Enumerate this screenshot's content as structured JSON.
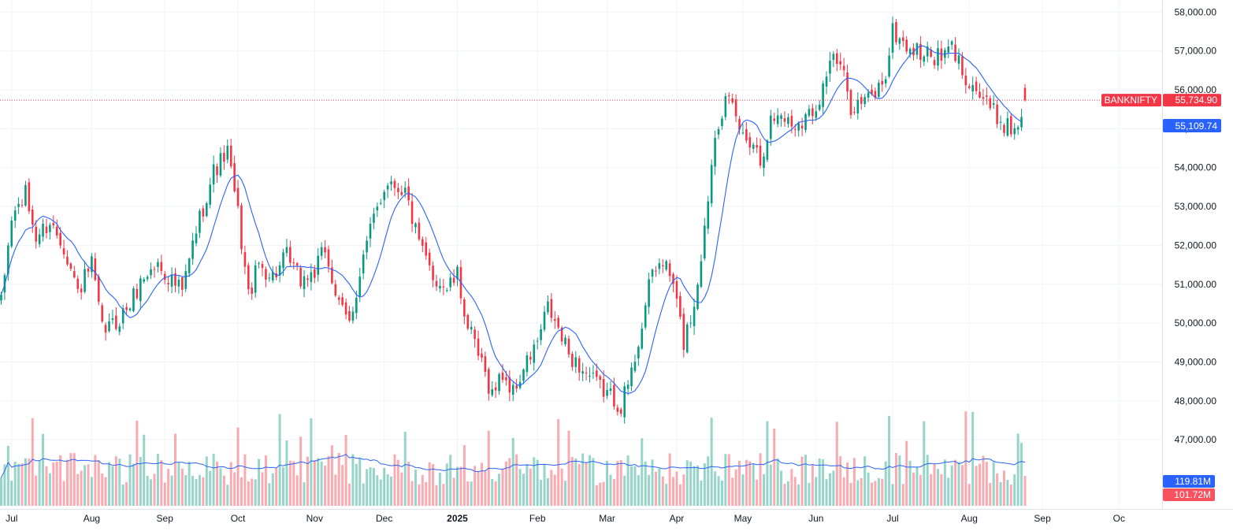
{
  "chart_data": {
    "type": "candlestick",
    "symbol": "BANKNIFTY",
    "last_price": "55,734.90",
    "ma_value": "55,109.74",
    "volume_ma_value": "119.81M",
    "volume_value": "101.72M",
    "ylim": [
      47600,
      58400
    ],
    "y_ticks": [
      {
        "v": 58000,
        "label": "58,000.00"
      },
      {
        "v": 57000,
        "label": "57,000.00"
      },
      {
        "v": 56000,
        "label": "56,000.00"
      },
      {
        "v": 55000,
        "label": "55,000.00"
      },
      {
        "v": 54000,
        "label": "54,000.00"
      },
      {
        "v": 53000,
        "label": "53,000.00"
      },
      {
        "v": 52000,
        "label": "52,000.00"
      },
      {
        "v": 51000,
        "label": "51,000.00"
      },
      {
        "v": 50000,
        "label": "50,000.00"
      },
      {
        "v": 49000,
        "label": "49,000.00"
      },
      {
        "v": 48000,
        "label": "48,000.00"
      },
      {
        "v": 47000,
        "label": "47,000.00"
      }
    ],
    "x_ticks": [
      {
        "label": "Jul",
        "i": 3,
        "bold": false
      },
      {
        "label": "Aug",
        "i": 26,
        "bold": false
      },
      {
        "label": "Sep",
        "i": 47,
        "bold": false
      },
      {
        "label": "Oct",
        "i": 68,
        "bold": false
      },
      {
        "label": "Nov",
        "i": 90,
        "bold": false
      },
      {
        "label": "Dec",
        "i": 110,
        "bold": false
      },
      {
        "label": "2025",
        "i": 131,
        "bold": true
      },
      {
        "label": "Feb",
        "i": 154,
        "bold": false
      },
      {
        "label": "Mar",
        "i": 174,
        "bold": false
      },
      {
        "label": "Apr",
        "i": 194,
        "bold": false
      },
      {
        "label": "May",
        "i": 213,
        "bold": false
      },
      {
        "label": "Jun",
        "i": 234,
        "bold": false
      },
      {
        "label": "Jul",
        "i": 256,
        "bold": false
      },
      {
        "label": "Aug",
        "i": 278,
        "bold": false
      },
      {
        "label": "Sep",
        "i": 299,
        "bold": false
      },
      {
        "label": "Oc",
        "i": 321,
        "bold": false
      }
    ],
    "close_path": [
      [
        0,
        50500
      ],
      [
        3,
        52700
      ],
      [
        7,
        53300
      ],
      [
        10,
        52200
      ],
      [
        14,
        52600
      ],
      [
        18,
        52000
      ],
      [
        22,
        50800
      ],
      [
        26,
        51500
      ],
      [
        29,
        49800
      ],
      [
        33,
        50000
      ],
      [
        37,
        50500
      ],
      [
        41,
        51200
      ],
      [
        45,
        51500
      ],
      [
        52,
        50800
      ],
      [
        56,
        52400
      ],
      [
        61,
        53900
      ],
      [
        65,
        54400
      ],
      [
        68,
        52800
      ],
      [
        71,
        50700
      ],
      [
        74,
        51500
      ],
      [
        78,
        51200
      ],
      [
        82,
        51700
      ],
      [
        86,
        51100
      ],
      [
        90,
        51300
      ],
      [
        93,
        51900
      ],
      [
        97,
        50400
      ],
      [
        100,
        50000
      ],
      [
        104,
        51700
      ],
      [
        108,
        53000
      ],
      [
        111,
        53700
      ],
      [
        116,
        53400
      ],
      [
        120,
        52000
      ],
      [
        124,
        51200
      ],
      [
        128,
        50900
      ],
      [
        131,
        51200
      ],
      [
        134,
        49900
      ],
      [
        138,
        48900
      ],
      [
        141,
        48200
      ],
      [
        144,
        48700
      ],
      [
        147,
        48200
      ],
      [
        150,
        48800
      ],
      [
        154,
        49500
      ],
      [
        157,
        50400
      ],
      [
        160,
        49800
      ],
      [
        163,
        49200
      ],
      [
        166,
        48900
      ],
      [
        170,
        48500
      ],
      [
        174,
        48200
      ],
      [
        178,
        47900
      ],
      [
        181,
        48700
      ],
      [
        184,
        50000
      ],
      [
        187,
        51300
      ],
      [
        190,
        51600
      ],
      [
        193,
        51000
      ],
      [
        196,
        49500
      ],
      [
        199,
        50500
      ],
      [
        202,
        52400
      ],
      [
        205,
        55000
      ],
      [
        208,
        55700
      ],
      [
        210,
        55500
      ],
      [
        213,
        54800
      ],
      [
        216,
        54700
      ],
      [
        218,
        54200
      ],
      [
        221,
        55200
      ],
      [
        224,
        55400
      ],
      [
        227,
        55100
      ],
      [
        231,
        55300
      ],
      [
        234,
        55600
      ],
      [
        236,
        56100
      ],
      [
        238,
        56800
      ],
      [
        241,
        56600
      ],
      [
        244,
        55600
      ],
      [
        248,
        55700
      ],
      [
        251,
        55900
      ],
      [
        254,
        56400
      ],
      [
        256,
        57500
      ],
      [
        259,
        57200
      ],
      [
        262,
        57000
      ],
      [
        266,
        56900
      ],
      [
        270,
        56800
      ],
      [
        273,
        57100
      ],
      [
        276,
        56500
      ],
      [
        280,
        56000
      ],
      [
        284,
        55500
      ],
      [
        287,
        55200
      ],
      [
        290,
        55000
      ],
      [
        292,
        55100
      ],
      [
        293,
        55300
      ]
    ],
    "volume_range_M": [
      0,
      360
    ]
  }
}
